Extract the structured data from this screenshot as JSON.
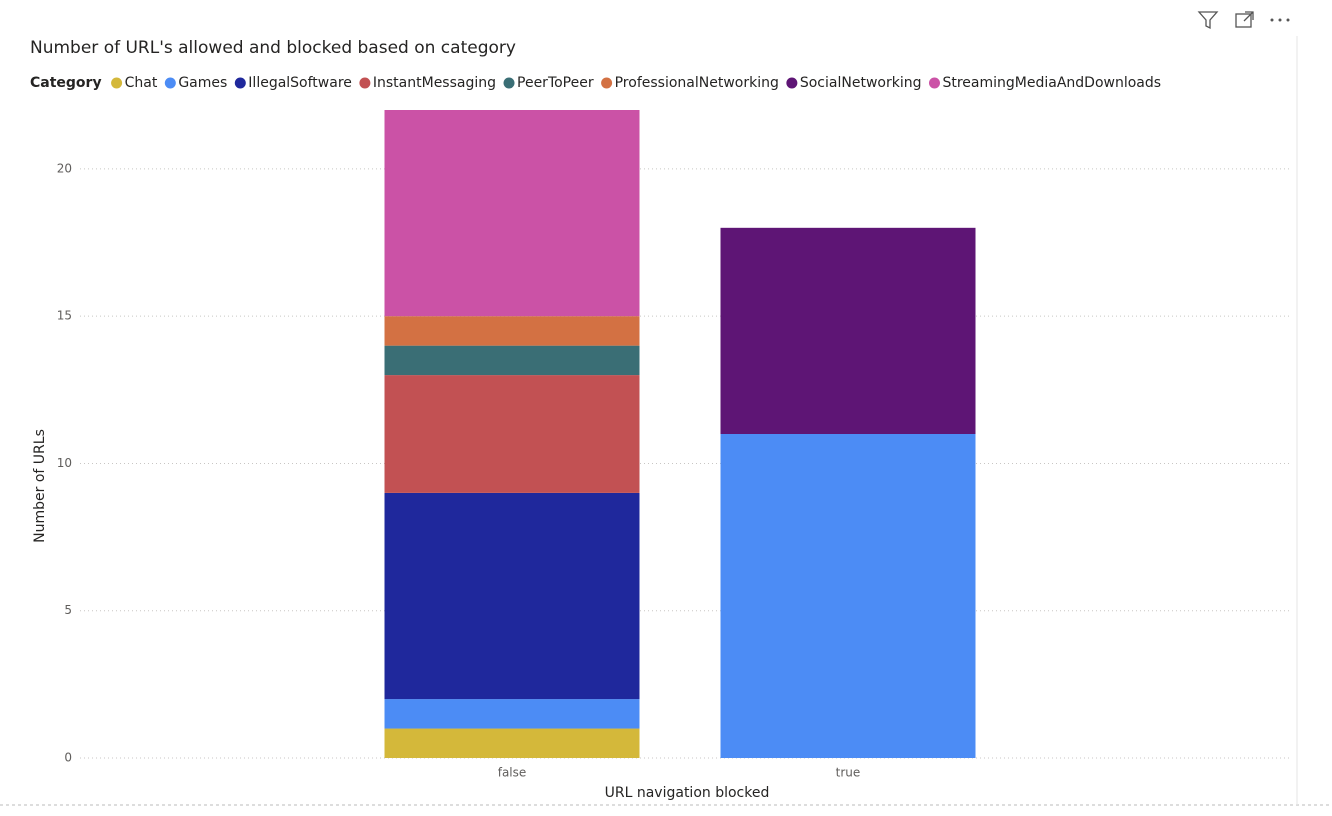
{
  "chart_data": {
    "type": "stacked_bar",
    "title": "Number of URL's allowed and blocked based on category",
    "legend_title": "Category",
    "x_label": "URL navigation blocked",
    "y_label": "Number of URLs",
    "categories": [
      "false",
      "true"
    ],
    "series": [
      {
        "name": "Chat",
        "color": "#d4b83a",
        "values": [
          1,
          null
        ]
      },
      {
        "name": "Games",
        "color": "#4c8cf5",
        "values": [
          1,
          11
        ]
      },
      {
        "name": "IllegalSoftware",
        "color": "#1f289c",
        "values": [
          7,
          null
        ]
      },
      {
        "name": "InstantMessaging",
        "color": "#c25153",
        "values": [
          4,
          null
        ]
      },
      {
        "name": "PeerToPeer",
        "color": "#3a6e75",
        "values": [
          1,
          null
        ]
      },
      {
        "name": "ProfessionalNetworking",
        "color": "#d37143",
        "values": [
          1,
          null
        ]
      },
      {
        "name": "SocialNetworking",
        "color": "#5e1575",
        "values": [
          null,
          7
        ]
      },
      {
        "name": "StreamingMediaAndDownloads",
        "color": "#cb52a6",
        "values": [
          7,
          null
        ]
      }
    ],
    "ylim": [
      0,
      22
    ],
    "yticks": [
      0,
      5,
      10,
      15,
      20
    ],
    "grid": true,
    "legend": "top-left"
  }
}
